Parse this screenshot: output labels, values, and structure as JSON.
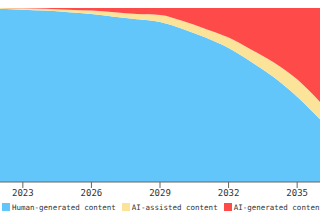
{
  "chart_data": {
    "type": "area",
    "stacked": true,
    "x": [
      2022,
      2023,
      2024,
      2025,
      2026,
      2027,
      2028,
      2029,
      2030,
      2031,
      2032,
      2033,
      2034,
      2035,
      2036
    ],
    "xlim": [
      2022,
      2036
    ],
    "xticks": [
      2023,
      2026,
      2029,
      2032,
      2035
    ],
    "ylim": [
      0,
      100
    ],
    "grid": false,
    "tick_labels": "x",
    "legend": "bottom",
    "series": [
      {
        "name": "Human-generated content",
        "color": "#62c6fb",
        "values": [
          99.5,
          99,
          98.5,
          97.5,
          96.5,
          95,
          93.5,
          92,
          88,
          83,
          77,
          69,
          60,
          49,
          36
        ]
      },
      {
        "name": "AI-assisted content",
        "color": "#fbe39a",
        "values": [
          0.5,
          0.8,
          1,
          1.5,
          2,
          2.5,
          3,
          4,
          4.5,
          5,
          6,
          7,
          8.5,
          10,
          10
        ]
      },
      {
        "name": "AI-generated content",
        "color": "#ff4a4a",
        "values": [
          0,
          0.2,
          0.5,
          1,
          1.5,
          2.5,
          3.5,
          4,
          7.5,
          12,
          17,
          24,
          31.5,
          41,
          54
        ]
      }
    ]
  }
}
